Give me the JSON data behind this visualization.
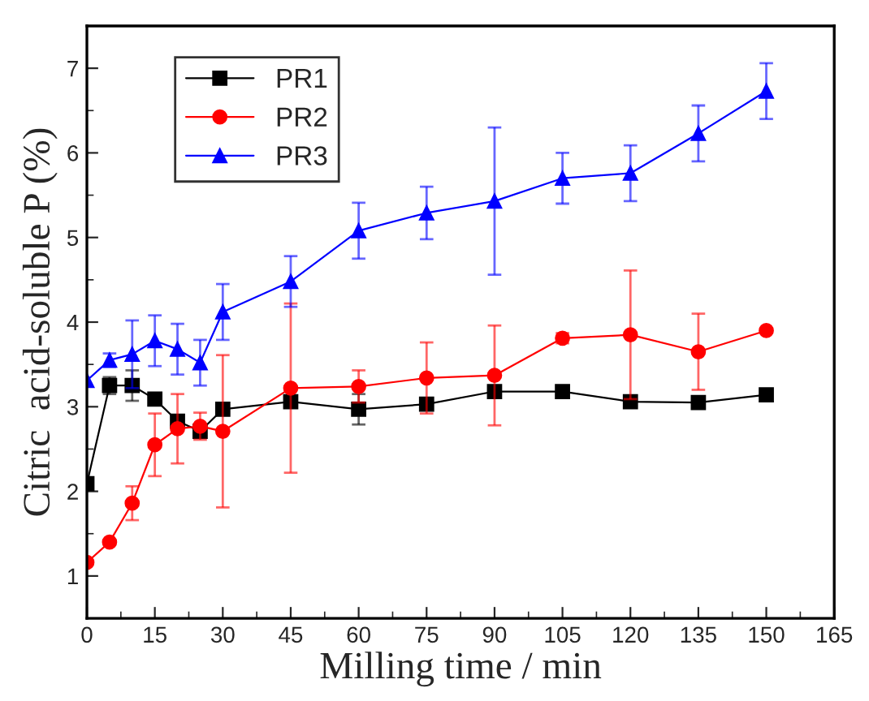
{
  "chart_data": {
    "type": "line",
    "xlabel": "Milling time / min",
    "ylabel": "Citric  acid-soluble P (%)",
    "x": [
      0,
      5,
      10,
      15,
      20,
      25,
      30,
      45,
      60,
      75,
      90,
      105,
      120,
      135,
      150
    ],
    "xlim": [
      0,
      165
    ],
    "xticks": [
      0,
      15,
      30,
      45,
      60,
      75,
      90,
      105,
      120,
      135,
      150,
      165
    ],
    "ylim": [
      0.5,
      7.5
    ],
    "yticks": [
      1,
      2,
      3,
      4,
      5,
      6,
      7
    ],
    "legend": "top left",
    "grid": false,
    "series": [
      {
        "name": "PR1",
        "color": "#000000",
        "marker": "square",
        "values": [
          2.09,
          3.25,
          3.25,
          3.09,
          2.83,
          2.71,
          2.97,
          3.06,
          2.97,
          3.03,
          3.18,
          3.18,
          3.06,
          3.05,
          3.14
        ],
        "errors": [
          null,
          0.1,
          0.18,
          null,
          null,
          0.08,
          null,
          null,
          0.18,
          null,
          null,
          null,
          null,
          null,
          null
        ]
      },
      {
        "name": "PR2",
        "color": "#ff0000",
        "marker": "circle",
        "values": [
          1.16,
          1.4,
          1.86,
          2.55,
          2.74,
          2.77,
          2.71,
          3.22,
          3.24,
          3.34,
          3.37,
          3.81,
          3.85,
          3.65,
          3.9
        ],
        "errors": [
          null,
          null,
          0.2,
          0.37,
          0.41,
          0.16,
          0.9,
          1.0,
          0.19,
          0.42,
          0.59,
          0.06,
          0.76,
          0.45,
          null
        ]
      },
      {
        "name": "PR3",
        "color": "#0000ff",
        "marker": "triangle",
        "values": [
          3.31,
          3.55,
          3.62,
          3.78,
          3.68,
          3.52,
          4.12,
          4.48,
          5.08,
          5.29,
          5.43,
          5.7,
          5.76,
          6.23,
          6.73
        ],
        "errors": [
          null,
          0.08,
          0.4,
          0.3,
          0.3,
          0.27,
          0.33,
          0.3,
          0.33,
          0.31,
          0.87,
          0.3,
          0.33,
          0.33,
          0.33
        ]
      }
    ]
  }
}
